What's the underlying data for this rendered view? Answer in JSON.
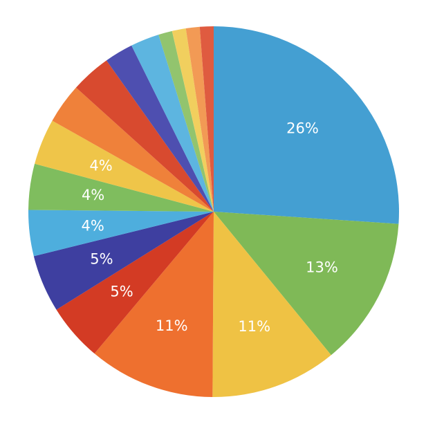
{
  "chart_data": {
    "type": "pie",
    "start_angle_deg": 0,
    "direction": "clockwise",
    "slices": [
      {
        "value": 26,
        "label": "26%",
        "color": "#449fd2"
      },
      {
        "value": 13,
        "label": "13%",
        "color": "#7fb957"
      },
      {
        "value": 11,
        "label": "11%",
        "color": "#efc244"
      },
      {
        "value": 11,
        "label": "11%",
        "color": "#ee702f"
      },
      {
        "value": 5,
        "label": "5%",
        "color": "#d33b24"
      },
      {
        "value": 5,
        "label": "5%",
        "color": "#3e3fa0"
      },
      {
        "value": 4,
        "label": "4%",
        "color": "#4eaedd"
      },
      {
        "value": 4,
        "label": "4%",
        "color": "#7fbd5e"
      },
      {
        "value": 4,
        "label": "4%",
        "color": "#efc549"
      },
      {
        "value": 3.5,
        "label": "",
        "color": "#ef813a"
      },
      {
        "value": 3.5,
        "label": "",
        "color": "#d84a2f"
      },
      {
        "value": 2.5,
        "label": "",
        "color": "#4e4fb0"
      },
      {
        "value": 2.5,
        "label": "",
        "color": "#5db5e0"
      },
      {
        "value": 1.2,
        "label": "",
        "color": "#92c46e"
      },
      {
        "value": 1.2,
        "label": "",
        "color": "#f1cf5e"
      },
      {
        "value": 1.2,
        "label": "",
        "color": "#f29a55"
      },
      {
        "value": 1.2,
        "label": "",
        "color": "#df5b40"
      }
    ]
  }
}
